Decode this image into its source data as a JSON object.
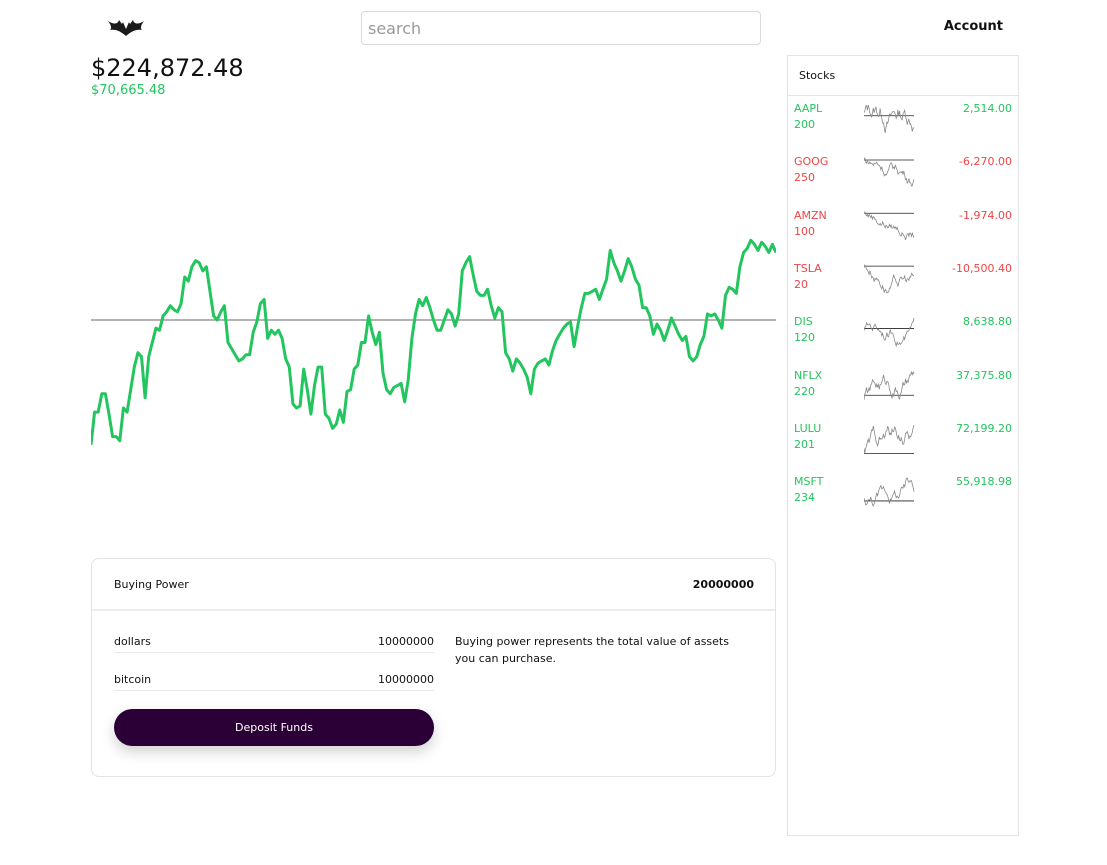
{
  "header": {
    "logo_icon": "bat-logo-icon",
    "search_placeholder": "search",
    "account_label": "Account"
  },
  "portfolio": {
    "value": "$224,872.48",
    "change": "$70,665.48",
    "change_color": "#22c55e"
  },
  "chart_data": {
    "type": "line",
    "title": "",
    "xlabel": "",
    "ylabel": "",
    "line_color": "#22c55e",
    "baseline": 0,
    "ylim": [
      -10,
      10
    ],
    "values": [
      -6.1,
      -4.5,
      -4.5,
      -3.6,
      -3.6,
      -4.6,
      -5.7,
      -5.7,
      -5.9,
      -4.3,
      -4.5,
      -3.4,
      -2.3,
      -1.6,
      -1.8,
      -3.8,
      -1.8,
      -1.1,
      -0.4,
      -0.5,
      0.2,
      0.4,
      0.7,
      0.5,
      0.4,
      0.8,
      2.1,
      1.9,
      2.6,
      2.9,
      2.8,
      2.4,
      2.6,
      1.4,
      0.2,
      0.0,
      0.4,
      0.7,
      -1.1,
      -1.4,
      -1.7,
      -2.0,
      -1.9,
      -1.7,
      -1.7,
      -0.6,
      -0.1,
      0.8,
      1.0,
      -0.9,
      -0.5,
      -0.7,
      -0.5,
      -0.9,
      -1.9,
      -2.3,
      -4.1,
      -4.3,
      -4.2,
      -2.4,
      -3.4,
      -4.6,
      -3.2,
      -2.3,
      -2.3,
      -4.6,
      -4.8,
      -5.3,
      -5.1,
      -4.4,
      -5.0,
      -3.5,
      -3.4,
      -2.4,
      -2.2,
      -1.1,
      -1.1,
      0.2,
      -0.6,
      -1.2,
      -0.6,
      -2.6,
      -3.4,
      -3.6,
      -3.3,
      -3.2,
      -3.1,
      -4.0,
      -2.9,
      -0.9,
      0.3,
      1.0,
      0.7,
      1.1,
      0.6,
      0.0,
      -0.5,
      -0.5,
      0.0,
      0.5,
      0.3,
      -0.3,
      0.3,
      2.4,
      2.8,
      3.1,
      2.2,
      1.4,
      1.2,
      1.2,
      1.5,
      0.7,
      0.1,
      0.6,
      0.4,
      -1.6,
      -1.9,
      -2.5,
      -1.9,
      -2.1,
      -2.4,
      -2.8,
      -3.6,
      -2.4,
      -2.1,
      -2.0,
      -1.9,
      -2.2,
      -1.5,
      -1.0,
      -0.7,
      -0.4,
      -0.2,
      -0.1,
      -1.3,
      -0.3,
      0.6,
      1.3,
      1.3,
      1.4,
      1.5,
      1.0,
      1.5,
      2.0,
      3.4,
      2.8,
      2.4,
      1.9,
      2.4,
      3.0,
      2.6,
      2.0,
      1.7,
      0.6,
      0.6,
      0.2,
      -0.7,
      -0.2,
      -0.5,
      -1.0,
      -0.5,
      0.1,
      -0.3,
      -0.7,
      -1.0,
      -0.8,
      -1.8,
      -2.0,
      -1.8,
      -1.2,
      -0.8,
      0.3,
      0.2,
      0.3,
      0.0,
      -0.4,
      1.2,
      1.6,
      1.5,
      1.3,
      2.6,
      3.3,
      3.5,
      3.9,
      3.7,
      3.4,
      3.8,
      3.6,
      3.3,
      3.7,
      3.3
    ]
  },
  "buying_power": {
    "title": "Buying Power",
    "total": "20000000",
    "rows": [
      {
        "label": "dollars",
        "value": "10000000"
      },
      {
        "label": "bitcoin",
        "value": "10000000"
      }
    ],
    "description": "Buying power represents the total value of assets you can purchase.",
    "deposit_label": "Deposit Funds"
  },
  "stocks": {
    "title": "Stocks",
    "items": [
      {
        "symbol": "AAPL",
        "shares": "200",
        "change": "2,514.00",
        "positive": true
      },
      {
        "symbol": "GOOG",
        "shares": "250",
        "change": "-6,270.00",
        "positive": false
      },
      {
        "symbol": "AMZN",
        "shares": "100",
        "change": "-1,974.00",
        "positive": false
      },
      {
        "symbol": "TSLA",
        "shares": "20",
        "change": "-10,500.40",
        "positive": false
      },
      {
        "symbol": "DIS",
        "shares": "120",
        "change": "8,638.80",
        "positive": true
      },
      {
        "symbol": "NFLX",
        "shares": "220",
        "change": "37,375.80",
        "positive": true
      },
      {
        "symbol": "LULU",
        "shares": "201",
        "change": "72,199.20",
        "positive": true
      },
      {
        "symbol": "MSFT",
        "shares": "234",
        "change": "55,918.98",
        "positive": true
      }
    ],
    "positive_color": "#22c55e",
    "negative_color": "#ef4444"
  }
}
